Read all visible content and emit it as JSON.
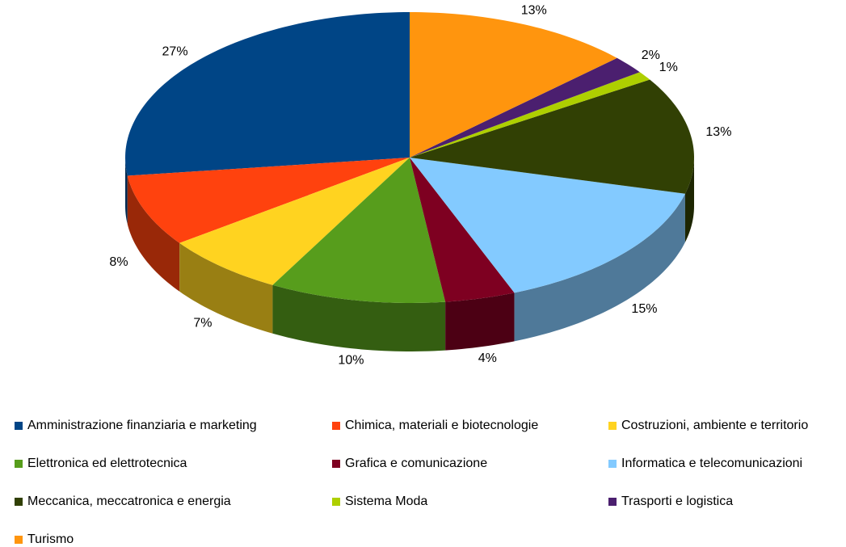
{
  "chart_data": {
    "type": "pie",
    "categories": [
      "Amministrazione finanziaria e marketing",
      "Chimica, materiali e biotecnologie",
      "Costruzioni, ambiente e territorio",
      "Elettronica ed elettrotecnica",
      "Grafica e comunicazione",
      "Informatica e telecomunicazioni",
      "Meccanica, meccatronica e energia",
      "Sistema Moda",
      "Trasporti e logistica",
      "Turismo"
    ],
    "values": [
      27,
      8,
      7,
      10,
      4,
      15,
      13,
      1,
      2,
      13
    ],
    "value_labels": [
      "27%",
      "8%",
      "7%",
      "10%",
      "4%",
      "15%",
      "13%",
      "1%",
      "2%",
      "13%"
    ],
    "colors": [
      "#004586",
      "#ff420e",
      "#ffd320",
      "#579d1c",
      "#7e0021",
      "#83caff",
      "#314004",
      "#aecf00",
      "#4b1f6f",
      "#ff950e"
    ],
    "legend": "bottom"
  }
}
